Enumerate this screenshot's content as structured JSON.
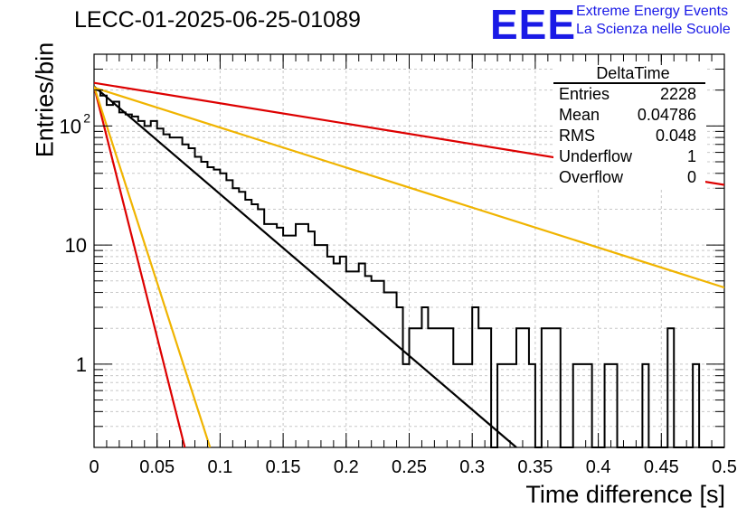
{
  "title": "LECC-01-2025-06-25-01089",
  "logo": {
    "mark": "EEE",
    "line1": "Extreme Energy Events",
    "line2": "La Scienza nelle Scuole"
  },
  "stats_box": {
    "name": "DeltaTime",
    "rows": [
      {
        "label": "Entries",
        "value": "2228"
      },
      {
        "label": "Mean",
        "value": "0.04786"
      },
      {
        "label": "RMS",
        "value": "0.048"
      },
      {
        "label": "Underflow",
        "value": "1"
      },
      {
        "label": "Overflow",
        "value": "0"
      }
    ]
  },
  "chart_data": {
    "type": "histogram",
    "xlabel": "Time difference [s]",
    "ylabel": "Entries/bin",
    "xlim": [
      0,
      0.5
    ],
    "ylim": [
      0.2,
      400
    ],
    "yscale": "log",
    "grid": true,
    "x_ticks": [
      "0",
      "0.05",
      "0.1",
      "0.15",
      "0.2",
      "0.25",
      "0.3",
      "0.35",
      "0.4",
      "0.45",
      "0.5"
    ],
    "y_ticks": [
      {
        "value": 1,
        "label": "1"
      },
      {
        "value": 10,
        "label": "10"
      },
      {
        "value": 100,
        "label": "10",
        "exp": "2"
      }
    ],
    "bin_width": 0.005,
    "histogram_values": [
      200,
      180,
      150,
      160,
      130,
      125,
      120,
      110,
      100,
      110,
      95,
      85,
      80,
      80,
      70,
      65,
      55,
      50,
      45,
      43,
      40,
      35,
      30,
      28,
      24,
      22,
      20,
      15,
      15,
      14,
      12,
      12,
      15,
      15,
      13,
      10,
      10,
      8,
      7,
      8,
      6,
      6,
      7,
      5.5,
      5,
      5,
      4,
      4,
      3,
      1,
      2,
      2,
      3,
      2,
      2,
      2,
      2,
      1,
      1,
      1,
      3,
      2,
      2,
      0,
      1,
      1,
      1,
      2,
      2,
      1,
      0,
      2,
      2,
      2,
      0,
      0,
      1,
      1,
      1,
      0,
      0,
      1,
      1,
      0,
      0,
      0,
      0,
      1,
      0,
      0,
      0,
      2,
      0,
      0,
      0,
      1,
      0,
      0,
      0,
      0
    ],
    "fit_lines": [
      {
        "color": "#000000",
        "x": [
          0,
          0.335
        ],
        "y": [
          215,
          0.2
        ]
      },
      {
        "color": "#dd0000",
        "x": [
          0,
          0.5
        ],
        "y": [
          230,
          32
        ]
      },
      {
        "color": "#f0b400",
        "x": [
          0,
          0.5
        ],
        "y": [
          210,
          4.4
        ]
      },
      {
        "color": "#dd0000",
        "x": [
          0,
          0.072
        ],
        "y": [
          215,
          0.2
        ]
      },
      {
        "color": "#f0b400",
        "x": [
          0,
          0.092
        ],
        "y": [
          215,
          0.2
        ]
      }
    ]
  }
}
